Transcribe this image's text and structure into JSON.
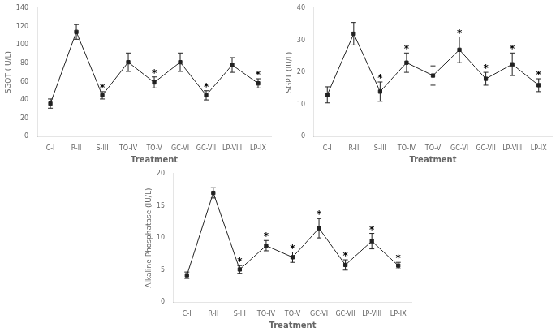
{
  "chart_data": [
    {
      "type": "line",
      "categories": [
        "C-I",
        "R-II",
        "S-III",
        "TO-IV",
        "TO-V",
        "GC-VI",
        "GC-VII",
        "LP-VIII",
        "LP-IX"
      ],
      "values": [
        36,
        114,
        45,
        81,
        59,
        81,
        45,
        78,
        58
      ],
      "errors": [
        5,
        8,
        4,
        10,
        6,
        10,
        5,
        8,
        5
      ],
      "xlabel": "Treatment",
      "ylabel": "SGOT (IU/L)",
      "ylim": [
        0,
        140
      ],
      "yticks": [
        0,
        20,
        40,
        60,
        80,
        100,
        120,
        140
      ],
      "color": "#222222",
      "marker": "square",
      "grid": false,
      "annotations": [
        {
          "text": "*",
          "category": "S-III"
        },
        {
          "text": "*",
          "category": "TO-V"
        },
        {
          "text": "*",
          "category": "GC-VII"
        },
        {
          "text": "*",
          "category": "LP-IX"
        }
      ]
    },
    {
      "type": "line",
      "categories": [
        "C-I",
        "R-II",
        "S-III",
        "TO-IV",
        "TO-V",
        "GC-VI",
        "GC-VII",
        "LP-VIII",
        "LP-IX"
      ],
      "values": [
        13,
        32,
        14,
        23,
        19,
        27,
        18,
        22.5,
        16
      ],
      "errors": [
        2.5,
        3.5,
        3,
        3,
        3,
        4,
        2,
        3.5,
        2
      ],
      "xlabel": "Treatment",
      "ylabel": "SGPT (IU/L)",
      "ylim": [
        0,
        40
      ],
      "yticks": [
        0,
        10,
        20,
        30,
        40
      ],
      "color": "#222222",
      "marker": "square",
      "grid": false,
      "annotations": [
        {
          "text": "*",
          "category": "S-III"
        },
        {
          "text": "*",
          "category": "TO-IV"
        },
        {
          "text": "*",
          "category": "GC-VI"
        },
        {
          "text": "*",
          "category": "GC-VII"
        },
        {
          "text": "*",
          "category": "LP-VIII"
        },
        {
          "text": "*",
          "category": "LP-IX"
        }
      ]
    },
    {
      "type": "line",
      "categories": [
        "C-I",
        "R-II",
        "S-III",
        "TO-IV",
        "TO-V",
        "GC-VI",
        "GC-VII",
        "LP-VIII",
        "LP-IX"
      ],
      "values": [
        4.2,
        17,
        5.1,
        8.8,
        7.0,
        11.5,
        5.8,
        9.5,
        5.7
      ],
      "errors": [
        0.5,
        0.8,
        0.6,
        0.8,
        0.8,
        1.5,
        0.8,
        1.2,
        0.5
      ],
      "xlabel": "Treatment",
      "ylabel": "Alkaline Phosphatase (IU/L)",
      "ylim": [
        0,
        20
      ],
      "yticks": [
        0,
        5,
        10,
        15,
        20
      ],
      "color": "#222222",
      "marker": "square",
      "grid": false,
      "annotations": [
        {
          "text": "*",
          "category": "S-III"
        },
        {
          "text": "*",
          "category": "TO-IV"
        },
        {
          "text": "*",
          "category": "TO-V"
        },
        {
          "text": "*",
          "category": "GC-VI"
        },
        {
          "text": "*",
          "category": "GC-VII"
        },
        {
          "text": "*",
          "category": "LP-VIII"
        },
        {
          "text": "*",
          "category": "LP-IX"
        }
      ]
    }
  ]
}
